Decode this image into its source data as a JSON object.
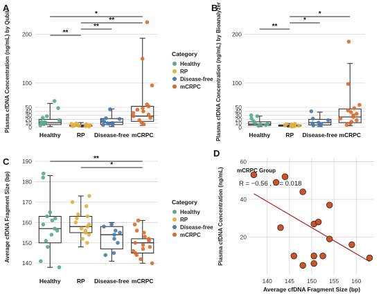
{
  "colors": {
    "healthy": "#5aab8a",
    "rp": "#e0b040",
    "disease_free": "#4a78b0",
    "mcrpc": "#d96a2c",
    "grid": "#d6d6d6",
    "fit_line": "#b02020",
    "scatter_fill": "#c9552b"
  },
  "chart_data": [
    {
      "id": "A",
      "panel_label": "A",
      "type": "box_strip",
      "ylabel": "Plasma cfDNA Concentration (ng/mL) by Qubit",
      "categories": [
        "Healthy",
        "RP",
        "Disease-free",
        "mCRPC"
      ],
      "y_ticks": [
        0,
        10,
        20,
        30,
        40,
        50,
        100,
        200
      ],
      "ylim": [
        0,
        235
      ],
      "grid": true,
      "boxes": [
        {
          "min": 2,
          "q1": 7,
          "median": 12,
          "q3": 20,
          "max": 58
        },
        {
          "min": 1,
          "q1": 3,
          "median": 4,
          "q3": 6,
          "max": 12
        },
        {
          "min": 2,
          "q1": 7,
          "median": 13,
          "q3": 22,
          "max": 46
        },
        {
          "min": 5,
          "q1": 15,
          "median": 28,
          "q3": 52,
          "max": 192
        }
      ],
      "points": [
        [
          5,
          8,
          10,
          12,
          13,
          14,
          18,
          24,
          28,
          48,
          63
        ],
        [
          2,
          3,
          3,
          4,
          4,
          5,
          5,
          6,
          6,
          7,
          8,
          9,
          10
        ],
        [
          6,
          8,
          9,
          10,
          11,
          14,
          17,
          21,
          23,
          45
        ],
        [
          8,
          12,
          18,
          24,
          28,
          32,
          36,
          40,
          44,
          48,
          52,
          56,
          95,
          150,
          225
        ]
      ],
      "significance": [
        {
          "from": 0,
          "to": 3,
          "label": "*"
        },
        {
          "from": 1,
          "to": 3,
          "label": "**"
        },
        {
          "from": 1,
          "to": 2,
          "label": "**"
        },
        {
          "from": 0,
          "to": 1,
          "label": "**"
        }
      ],
      "legend": {
        "title": "Category",
        "items": [
          "Healthy",
          "RP",
          "Disease-free",
          "mCRPC"
        ],
        "position": "right"
      }
    },
    {
      "id": "B",
      "panel_label": "B",
      "type": "box_strip",
      "ylabel": "Plasma cfDNA Concentration (ng/mL) by Bioanalyzer",
      "categories": [
        "Healthy",
        "RP",
        "Disease-free",
        "mCRPC"
      ],
      "y_ticks": [
        0,
        10,
        20,
        30,
        40,
        50,
        100,
        200
      ],
      "ylim": [
        0,
        235
      ],
      "grid": true,
      "boxes": [
        {
          "min": 2,
          "q1": 5,
          "median": 8,
          "q3": 14,
          "max": 28
        },
        {
          "min": 1,
          "q1": 3,
          "median": 4,
          "q3": 6,
          "max": 10
        },
        {
          "min": 2,
          "q1": 6,
          "median": 12,
          "q3": 20,
          "max": 38
        },
        {
          "min": 4,
          "q1": 12,
          "median": 26,
          "q3": 46,
          "max": 140
        }
      ],
      "points": [
        [
          4,
          6,
          8,
          9,
          12,
          15,
          22,
          28,
          30
        ],
        [
          2,
          3,
          3,
          4,
          4,
          5,
          5,
          6,
          7,
          8,
          9
        ],
        [
          5,
          6,
          8,
          10,
          12,
          18,
          22,
          40
        ],
        [
          6,
          10,
          14,
          18,
          22,
          26,
          30,
          34,
          38,
          42,
          48,
          55,
          98,
          185
        ]
      ],
      "significance": [
        {
          "from": 1,
          "to": 3,
          "label": "*"
        },
        {
          "from": 1,
          "to": 2,
          "label": "*"
        },
        {
          "from": 0,
          "to": 1,
          "label": "**"
        }
      ]
    },
    {
      "id": "C",
      "panel_label": "C",
      "type": "box_strip",
      "ylabel": "Average cfDNA Fragment Size (bp)",
      "categories": [
        "Healthy",
        "RP",
        "Disease-free",
        "mCRPC"
      ],
      "y_ticks": [
        140,
        150,
        160,
        170,
        180,
        190
      ],
      "ylim": [
        136,
        190
      ],
      "grid": true,
      "boxes": [
        {
          "min": 138,
          "q1": 150,
          "median": 157,
          "q3": 163,
          "max": 183
        },
        {
          "min": 148,
          "q1": 155,
          "median": 158,
          "q3": 163,
          "max": 173
        },
        {
          "min": 141,
          "q1": 147,
          "median": 154,
          "q3": 158,
          "max": 160
        },
        {
          "min": 140,
          "q1": 145,
          "median": 150,
          "q3": 152,
          "max": 161
        }
      ],
      "points": [
        [
          138,
          141,
          148,
          151,
          154,
          156,
          157,
          159,
          161,
          162,
          163,
          165,
          182,
          184
        ],
        [
          150,
          152,
          154,
          155,
          156,
          157,
          158,
          159,
          160,
          162,
          163,
          164,
          168,
          170,
          173
        ],
        [
          144,
          145,
          150,
          152,
          154,
          155,
          156,
          158,
          159
        ],
        [
          140,
          142,
          144,
          145,
          146,
          147,
          148,
          149,
          150,
          151,
          152,
          153,
          155,
          156,
          159,
          161
        ]
      ],
      "significance": [
        {
          "from": 0,
          "to": 3,
          "label": "**"
        },
        {
          "from": 1,
          "to": 3,
          "label": "*"
        }
      ],
      "legend": {
        "title": "Category",
        "items": [
          "Healthy",
          "RP",
          "Disease-free",
          "mCRPC"
        ],
        "position": "right"
      }
    },
    {
      "id": "D",
      "panel_label": "D",
      "type": "scatter",
      "title": "mCRPC Group",
      "annotation": "R = −0.56 , P = 0.018",
      "xlabel": "Average cfDNA Fragment Size (bp)",
      "ylabel": "Plasma cfDNA Concentration (ng/mL)",
      "x_ticks": [
        140,
        145,
        150,
        155,
        160
      ],
      "y_ticks": [
        20,
        40,
        60
      ],
      "xlim": [
        136,
        164
      ],
      "ylim": [
        0,
        62
      ],
      "grid": true,
      "points": [
        {
          "x": 137,
          "y": 53
        },
        {
          "x": 142,
          "y": 49
        },
        {
          "x": 144,
          "y": 52
        },
        {
          "x": 148,
          "y": 44
        },
        {
          "x": 143,
          "y": 25
        },
        {
          "x": 150.5,
          "y": 27
        },
        {
          "x": 151.5,
          "y": 28
        },
        {
          "x": 154,
          "y": 37
        },
        {
          "x": 154,
          "y": 19
        },
        {
          "x": 146,
          "y": 10
        },
        {
          "x": 148,
          "y": 5
        },
        {
          "x": 150.5,
          "y": 10
        },
        {
          "x": 150.5,
          "y": 6
        },
        {
          "x": 152.5,
          "y": 10
        },
        {
          "x": 159,
          "y": 16
        },
        {
          "x": 163,
          "y": 9
        }
      ],
      "fit_line": {
        "x": [
          137,
          163
        ],
        "y": [
          43,
          7
        ]
      }
    }
  ]
}
